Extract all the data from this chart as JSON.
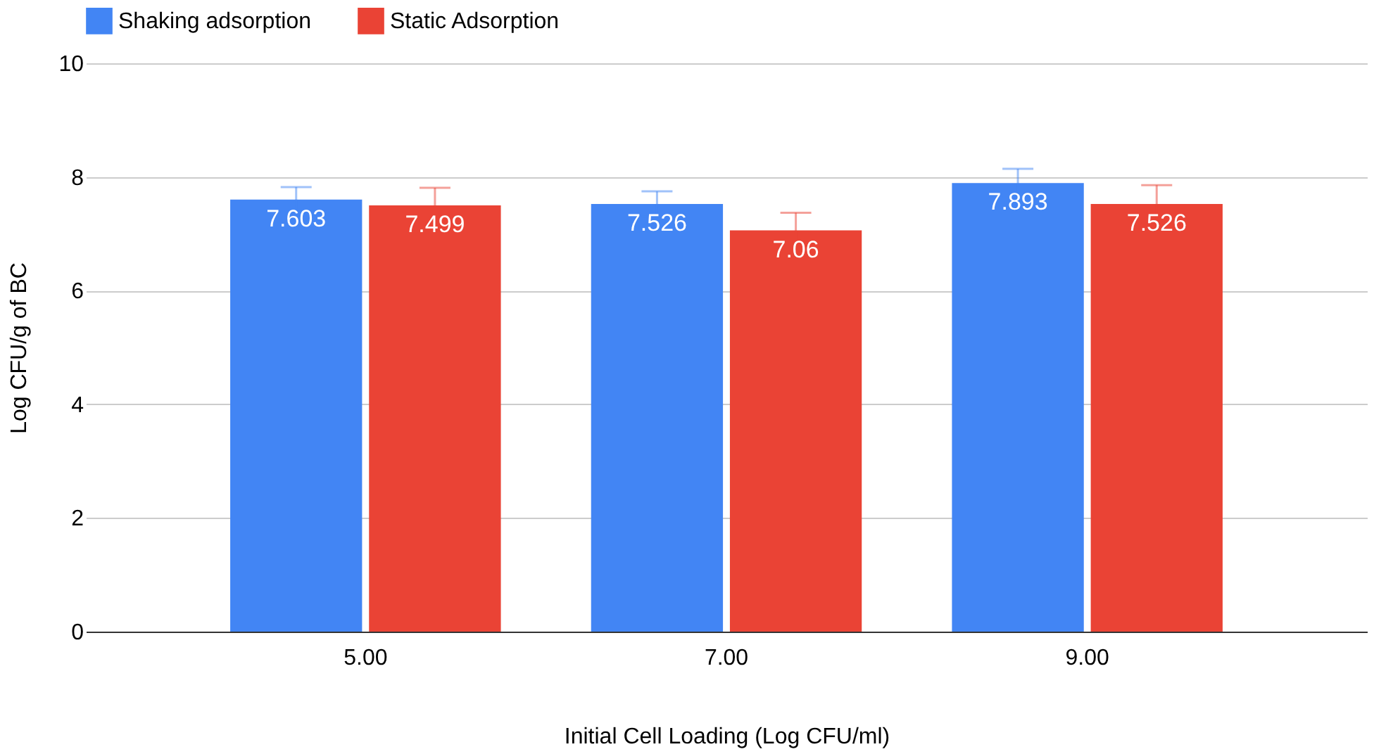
{
  "chart_data": {
    "type": "bar",
    "xlabel": "Initial Cell Loading (Log CFU/ml)",
    "ylabel": "Log CFU/g of BC",
    "categories": [
      "5.00",
      "7.00",
      "9.00"
    ],
    "series": [
      {
        "name": "Shaking adsorption",
        "color": "#4285f4",
        "values": [
          7.603,
          7.526,
          7.893
        ],
        "errors": [
          0.22,
          0.22,
          0.25
        ]
      },
      {
        "name": "Static Adsorption",
        "color": "#ea4335",
        "values": [
          7.499,
          7.06,
          7.526
        ],
        "errors": [
          0.31,
          0.31,
          0.33
        ]
      }
    ],
    "ylim": [
      0,
      10
    ],
    "yticks": [
      0,
      2,
      4,
      6,
      8,
      10
    ],
    "grid": "y",
    "legend": "top",
    "data_labels": true
  }
}
